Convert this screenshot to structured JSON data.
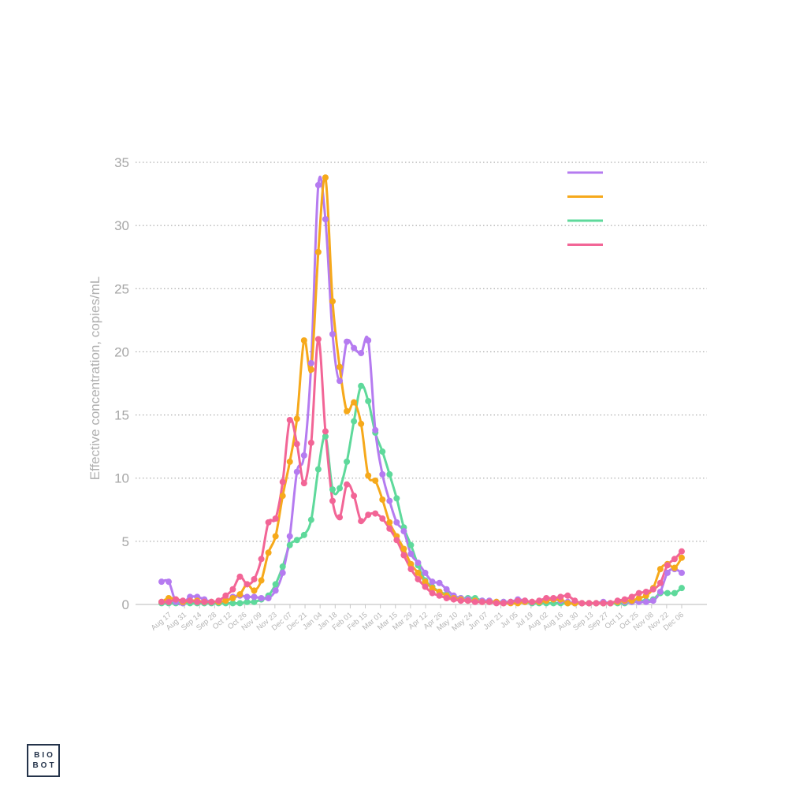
{
  "chart_data": {
    "type": "line",
    "title": "",
    "xlabel": "",
    "ylabel": "Effective concentration, copies/mL",
    "ylim": [
      0,
      35
    ],
    "yticks": [
      0,
      5,
      10,
      15,
      20,
      25,
      30,
      35
    ],
    "grid": "horizontal dotted",
    "legend_position": "top-right",
    "x_tick_labels": [
      "Aug 17",
      "Aug 31",
      "Sep 14",
      "Sep 28",
      "Oct 12",
      "Oct 26",
      "Nov 09",
      "Nov 23",
      "Dec 07",
      "Dec 21",
      "Jan 04",
      "Jan 18",
      "Feb 01",
      "Feb 15",
      "Mar 01",
      "Mar 15",
      "Mar 29",
      "Apr 12",
      "Apr 26",
      "May 10",
      "May 24",
      "Jun 07",
      "Jun 21",
      "Jul 05",
      "Jul 19",
      "Aug 02",
      "Aug 16",
      "Aug 30",
      "Sep 13",
      "Sep 27",
      "Oct 11",
      "Oct 25",
      "Nov 08",
      "Nov 22",
      "Dec 06"
    ],
    "series": [
      {
        "color": "#b57bf0",
        "values": [
          1.8,
          1.8,
          0.2,
          0.1,
          0.6,
          0.6,
          0.4,
          0.2,
          0.2,
          0.3,
          0.6,
          0.7,
          0.6,
          0.6,
          0.5,
          0.5,
          1.1,
          2.5,
          5.4,
          10.5,
          11.8,
          19.1,
          33.2,
          30.5,
          21.4,
          17.7,
          20.8,
          20.3,
          19.9,
          20.9,
          13.8,
          10.3,
          8.2,
          6.5,
          5.8,
          4.0,
          3.3,
          2.5,
          1.8,
          1.7,
          1.2,
          0.7,
          0.5,
          0.4,
          0.3,
          0.3,
          0.3,
          0.2,
          0.2,
          0.2,
          0.4,
          0.3,
          0.2,
          0.2,
          0.3,
          0.4,
          0.3,
          0.2,
          0.1,
          0.1,
          0.1,
          0.1,
          0.2,
          0.1,
          0.2,
          0.2,
          0.2,
          0.2,
          0.2,
          0.3,
          1.0,
          2.5,
          2.8,
          2.5
        ]
      },
      {
        "color": "#f6a91b",
        "values": [
          0.2,
          0.5,
          0.4,
          0.2,
          0.3,
          0.3,
          0.2,
          0.2,
          0.2,
          0.3,
          0.5,
          0.8,
          1.6,
          1.1,
          1.9,
          4.1,
          5.4,
          8.6,
          11.3,
          14.7,
          20.9,
          18.6,
          27.9,
          33.8,
          24.0,
          18.8,
          15.3,
          16.0,
          14.3,
          10.2,
          9.8,
          8.3,
          6.5,
          5.4,
          4.4,
          3.2,
          2.5,
          1.8,
          1.3,
          1.0,
          0.7,
          0.5,
          0.4,
          0.3,
          0.3,
          0.2,
          0.2,
          0.2,
          0.1,
          0.1,
          0.1,
          0.2,
          0.2,
          0.2,
          0.3,
          0.4,
          0.4,
          0.1,
          0.1,
          0.1,
          0.1,
          0.1,
          0.1,
          0.1,
          0.2,
          0.3,
          0.3,
          0.5,
          0.7,
          1.3,
          2.8,
          3.2,
          2.9,
          3.7
        ]
      },
      {
        "color": "#5ed99b",
        "values": [
          0.1,
          0.1,
          0.1,
          0.1,
          0.1,
          0.1,
          0.1,
          0.1,
          0.1,
          0.1,
          0.1,
          0.1,
          0.2,
          0.2,
          0.4,
          0.7,
          1.6,
          3.0,
          4.7,
          5.1,
          5.5,
          6.7,
          10.7,
          13.3,
          9.1,
          9.2,
          11.3,
          14.5,
          17.3,
          16.1,
          13.6,
          12.1,
          10.3,
          8.4,
          6.1,
          4.7,
          3.1,
          1.9,
          1.4,
          1.0,
          0.8,
          0.6,
          0.5,
          0.5,
          0.5,
          0.3,
          0.2,
          0.2,
          0.2,
          0.2,
          0.2,
          0.2,
          0.1,
          0.1,
          0.1,
          0.1,
          0.1,
          0.1,
          0.1,
          0.1,
          0.1,
          0.1,
          0.1,
          0.1,
          0.1,
          0.1,
          0.2,
          0.3,
          0.3,
          0.4,
          0.9,
          0.9,
          0.9,
          1.3
        ]
      },
      {
        "color": "#f26596",
        "values": [
          0.2,
          0.2,
          0.4,
          0.3,
          0.3,
          0.2,
          0.2,
          0.2,
          0.3,
          0.7,
          1.2,
          2.2,
          1.6,
          2.0,
          3.6,
          6.5,
          6.8,
          9.7,
          14.6,
          12.7,
          9.6,
          12.8,
          21.0,
          13.7,
          8.2,
          6.9,
          9.5,
          8.6,
          6.6,
          7.1,
          7.2,
          6.8,
          6.0,
          5.1,
          3.9,
          2.8,
          2.0,
          1.4,
          0.9,
          0.7,
          0.5,
          0.4,
          0.3,
          0.3,
          0.2,
          0.2,
          0.2,
          0.1,
          0.1,
          0.2,
          0.3,
          0.3,
          0.2,
          0.3,
          0.5,
          0.5,
          0.6,
          0.7,
          0.3,
          0.1,
          0.1,
          0.1,
          0.1,
          0.1,
          0.3,
          0.4,
          0.6,
          0.9,
          1.0,
          1.2,
          1.7,
          3.1,
          3.6,
          4.2
        ]
      }
    ]
  },
  "logo": {
    "line1": "BIO",
    "line2": "BOT"
  }
}
